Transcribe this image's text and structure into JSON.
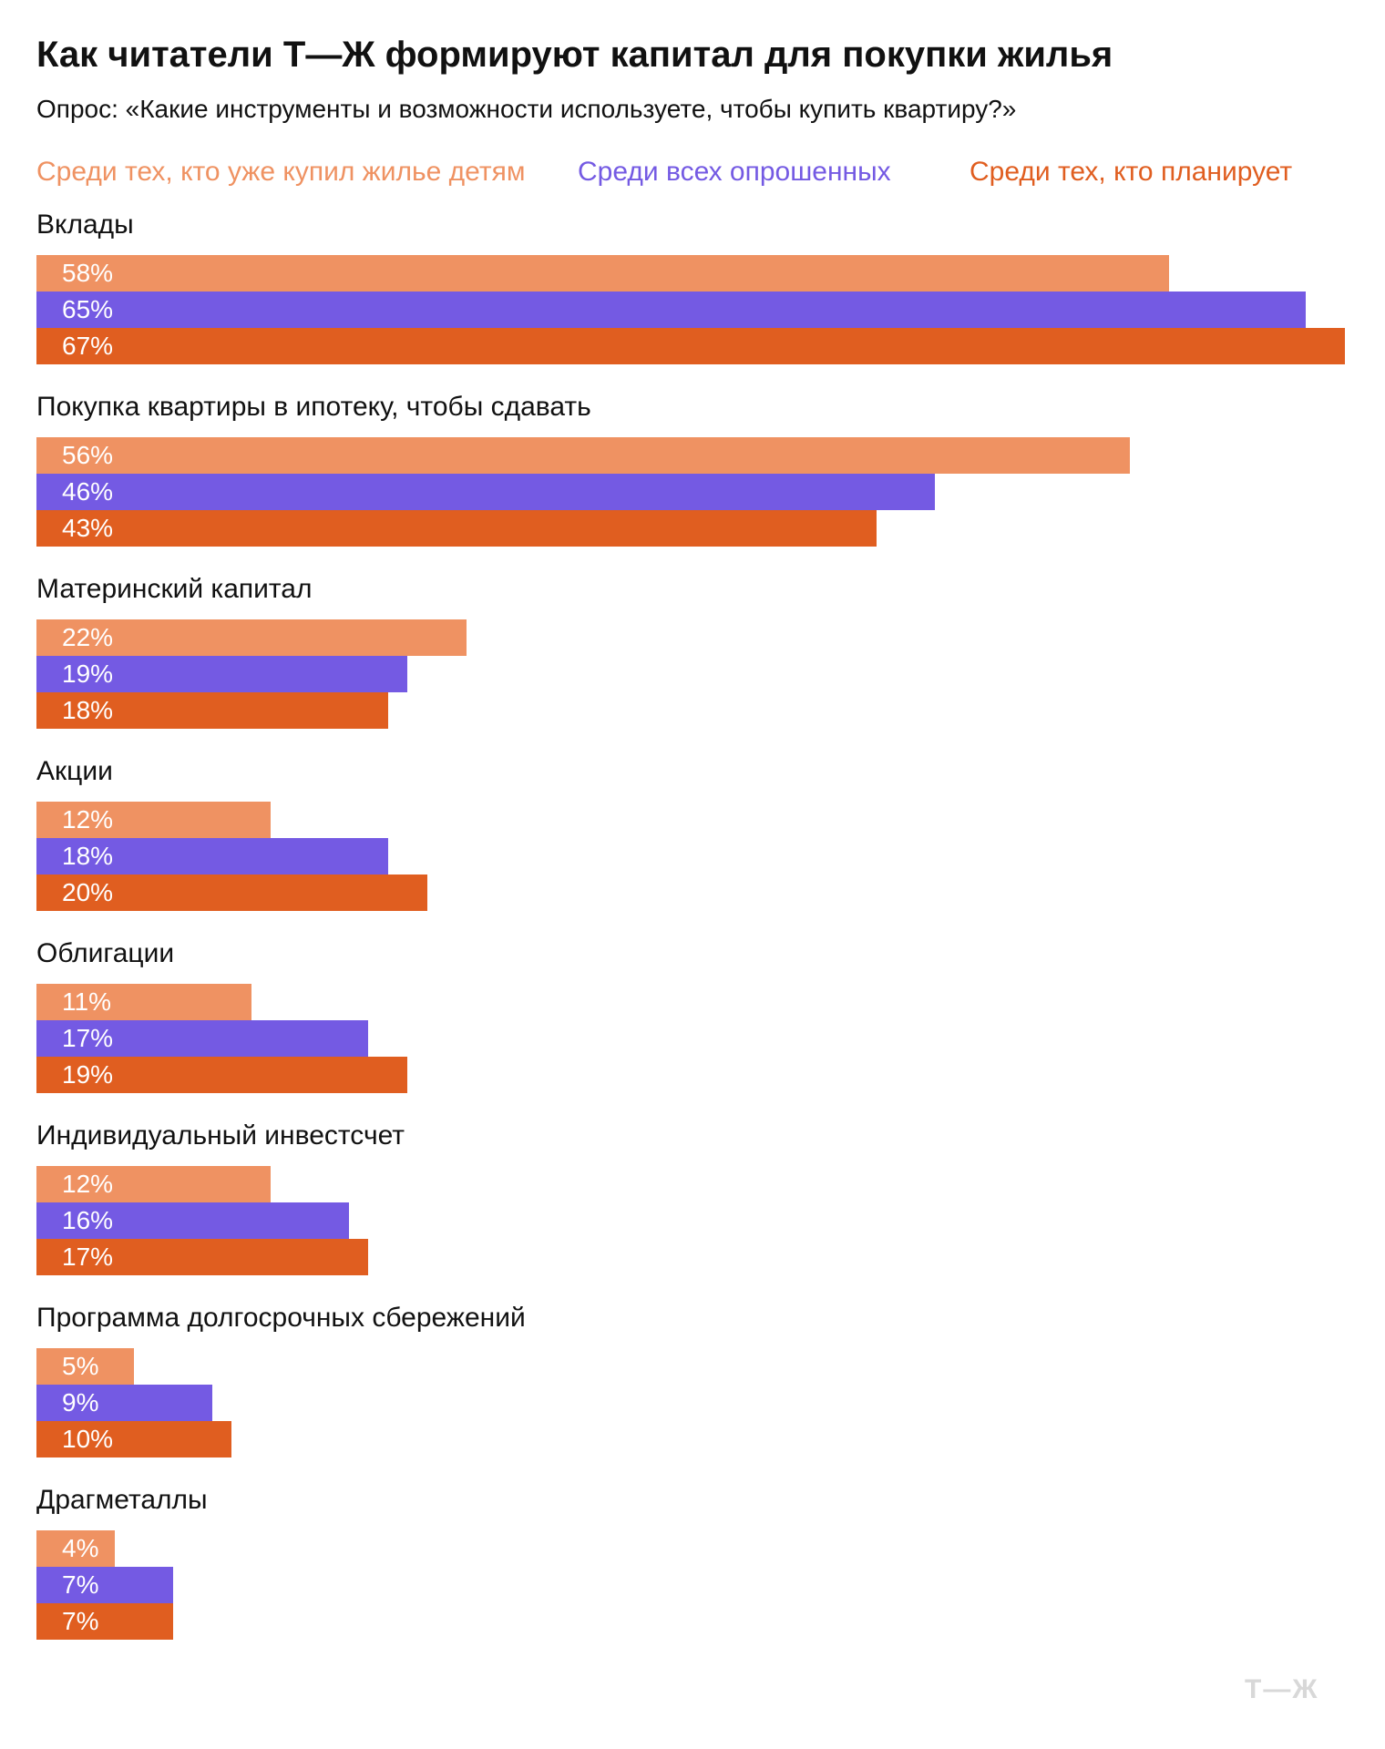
{
  "header": {
    "title": "Как читатели Т—Ж формируют капитал для покупки жилья",
    "subtitle": "Опрос: «Какие инструменты и возможности используете, чтобы купить квартиру?»"
  },
  "logo_text": "Т—Ж",
  "colors": {
    "bought": "#ef9262",
    "all": "#745ae3",
    "planning": "#e05e20"
  },
  "chart_data": {
    "type": "bar",
    "orientation": "horizontal",
    "title": "Как читатели Т—Ж формируют капитал для покупки жилья",
    "subtitle": "Опрос: «Какие инструменты и возможности используете, чтобы купить квартиру?»",
    "legend_position": "top",
    "grid": false,
    "xlim": [
      0,
      67
    ],
    "unit": "%",
    "categories": [
      "Вклады",
      "Покупка квартиры в ипотеку, чтобы сдавать",
      "Материнский капитал",
      "Акции",
      "Облигации",
      "Индивидуальный инвестсчет",
      "Программа долгосрочных сбережений",
      "Драгметаллы"
    ],
    "series": [
      {
        "name": "Среди тех, кто уже купил жилье детям",
        "color": "#ef9262",
        "values": [
          58,
          56,
          22,
          12,
          11,
          12,
          5,
          4
        ]
      },
      {
        "name": "Среди всех опрошенных",
        "color": "#745ae3",
        "values": [
          65,
          46,
          19,
          18,
          17,
          16,
          9,
          7
        ]
      },
      {
        "name": "Среди тех, кто планирует",
        "color": "#e05e20",
        "values": [
          67,
          43,
          18,
          20,
          19,
          17,
          10,
          7
        ]
      }
    ]
  }
}
